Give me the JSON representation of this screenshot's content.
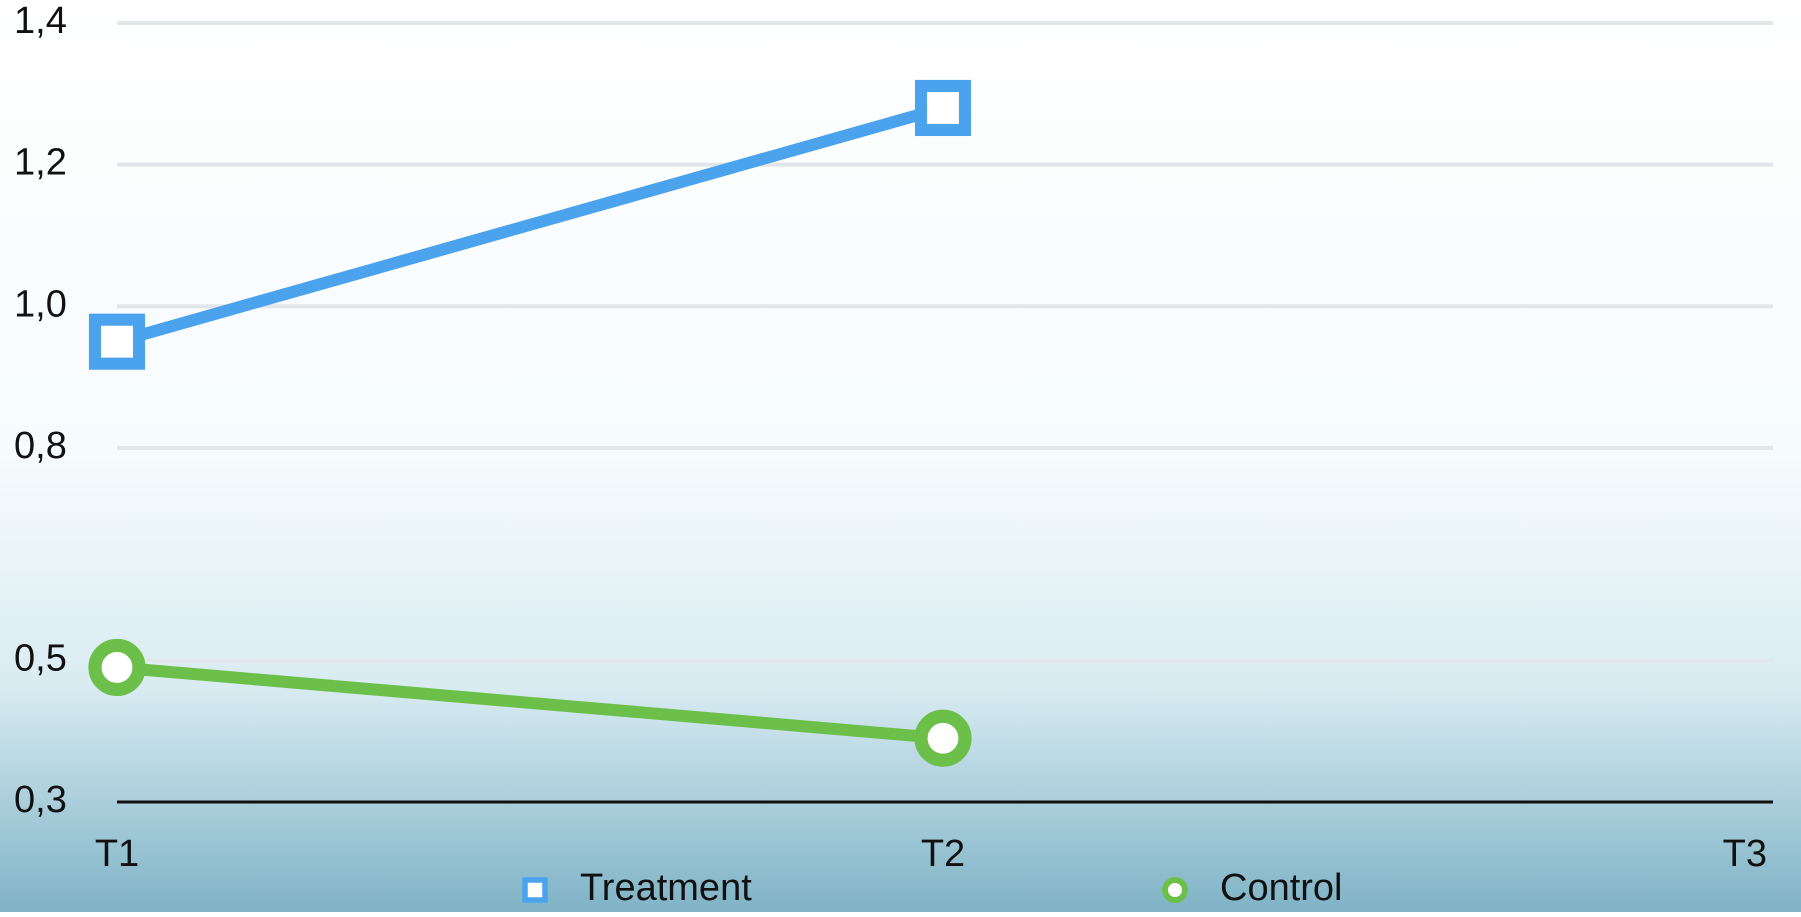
{
  "chart_data": {
    "type": "line",
    "categories": [
      "T1",
      "T2",
      "T3"
    ],
    "series": [
      {
        "name": "Treatment",
        "color": "#4aa3ec",
        "marker": "square",
        "values": [
          0.95,
          1.28,
          null
        ]
      },
      {
        "name": "Control",
        "color": "#6cc04a",
        "marker": "circle",
        "values": [
          0.49,
          0.39,
          null
        ]
      }
    ],
    "ylim": [
      0.3,
      1.4
    ],
    "yticks": [
      {
        "value": 0.3,
        "label": "0,3"
      },
      {
        "value": 0.5,
        "label": "0,5"
      },
      {
        "value": 0.8,
        "label": "0,8"
      },
      {
        "value": 1.0,
        "label": "1,0"
      },
      {
        "value": 1.2,
        "label": "1,2"
      },
      {
        "value": 1.4,
        "label": "1,4"
      }
    ],
    "grid": true,
    "legend": "bottom"
  }
}
